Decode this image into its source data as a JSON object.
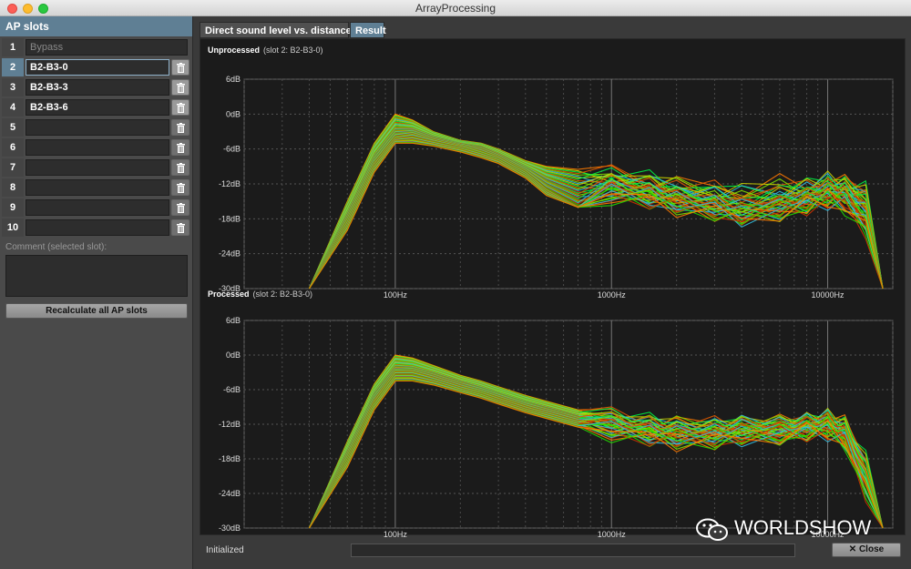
{
  "window": {
    "title": "ArrayProcessing"
  },
  "sidebar": {
    "header": "AP slots",
    "slots": [
      {
        "num": "1",
        "name": "Bypass"
      },
      {
        "num": "2",
        "name": "B2-B3-0"
      },
      {
        "num": "3",
        "name": "B2-B3-3"
      },
      {
        "num": "4",
        "name": "B2-B3-6"
      },
      {
        "num": "5",
        "name": ""
      },
      {
        "num": "6",
        "name": ""
      },
      {
        "num": "7",
        "name": ""
      },
      {
        "num": "8",
        "name": ""
      },
      {
        "num": "9",
        "name": ""
      },
      {
        "num": "10",
        "name": ""
      }
    ],
    "selected_slot": "2",
    "comment_label": "Comment (selected slot):",
    "comment_value": "",
    "recalc_label": "Recalculate all AP slots"
  },
  "tabs": [
    {
      "label": "Direct sound level vs. distance / dB",
      "active": false
    },
    {
      "label": "Result",
      "active": true
    }
  ],
  "plots": {
    "unprocessed": {
      "title": "Unprocessed",
      "subtitle": "(slot 2: B2-B3-0)"
    },
    "processed": {
      "title": "Processed",
      "subtitle": "(slot 2: B2-B3-0)"
    },
    "y_ticks": [
      "6dB",
      "0dB",
      "-6dB",
      "-12dB",
      "-18dB",
      "-24dB",
      "-30dB"
    ],
    "x_ticks": [
      "100Hz",
      "1000Hz",
      "10000Hz"
    ]
  },
  "status": {
    "label": "Initialized",
    "progress": 0
  },
  "close_label": "✕  Close",
  "watermark": "WORLDSHOW",
  "chart_data": [
    {
      "type": "line",
      "title": "Unprocessed",
      "xscale": "log",
      "xlim": [
        20,
        20000
      ],
      "ylim": [
        -30,
        6
      ],
      "x_ticks": [
        "100Hz",
        "1000Hz",
        "10000Hz"
      ],
      "y_ticks": [
        "6dB",
        "0dB",
        "-6dB",
        "-12dB",
        "-18dB",
        "-24dB",
        "-30dB"
      ],
      "grid": true,
      "series_colors": [
        "#ff7a00",
        "#e05a00",
        "#cc3300",
        "#c8d000",
        "#80e000",
        "#22dd00",
        "#00ee44",
        "#33bbdd"
      ],
      "x": [
        40,
        60,
        80,
        100,
        120,
        150,
        200,
        250,
        300,
        400,
        500,
        700,
        1000,
        1500,
        2000,
        3000,
        4000,
        6000,
        8000,
        10000,
        12000,
        15000,
        18000
      ],
      "series": [
        {
          "values": [
            -30,
            -15,
            -5,
            0,
            -1,
            -3,
            -4.5,
            -5,
            -6,
            -8,
            -9,
            -9.5,
            -10,
            -11,
            -12,
            -12.5,
            -13,
            -12,
            -12,
            -11.5,
            -12,
            -13,
            -30
          ]
        },
        {
          "values": [
            -30,
            -17,
            -7,
            -2.5,
            -2.5,
            -3.8,
            -5,
            -5.5,
            -6.8,
            -9,
            -11,
            -13,
            -12,
            -13,
            -14,
            -15,
            -16,
            -15,
            -14,
            -12.5,
            -13,
            -15,
            -30
          ]
        },
        {
          "values": [
            -30,
            -18.5,
            -8.5,
            -4,
            -3.5,
            -4.5,
            -5.5,
            -6.5,
            -7.5,
            -10,
            -13,
            -16,
            -13,
            -14,
            -15,
            -16,
            -17,
            -16,
            -15,
            -14,
            -14,
            -18,
            -30
          ]
        },
        {
          "values": [
            -30,
            -20,
            -10,
            -5,
            -5,
            -5.5,
            -6.5,
            -7.5,
            -8.5,
            -11,
            -14,
            -16,
            -14,
            -15,
            -16,
            -17,
            -18,
            -17,
            -16,
            -15,
            -16,
            -20,
            -30
          ]
        }
      ]
    },
    {
      "type": "line",
      "title": "Processed",
      "xscale": "log",
      "xlim": [
        20,
        20000
      ],
      "ylim": [
        -30,
        6
      ],
      "x_ticks": [
        "100Hz",
        "1000Hz",
        "10000Hz"
      ],
      "y_ticks": [
        "6dB",
        "0dB",
        "-6dB",
        "-12dB",
        "-18dB",
        "-24dB",
        "-30dB"
      ],
      "grid": true,
      "series_colors": [
        "#ff7a00",
        "#e05a00",
        "#cc3300",
        "#c8d000",
        "#80e000",
        "#22dd00",
        "#00ee44",
        "#33bbdd"
      ],
      "x": [
        40,
        60,
        80,
        100,
        120,
        150,
        200,
        250,
        300,
        400,
        500,
        700,
        1000,
        1500,
        2000,
        3000,
        4000,
        6000,
        8000,
        10000,
        12000,
        15000,
        18000
      ],
      "series": [
        {
          "values": [
            -30,
            -15,
            -5,
            0,
            -0.5,
            -1.8,
            -3.5,
            -4.5,
            -5.5,
            -7,
            -8,
            -9.5,
            -10.5,
            -11.5,
            -12,
            -12,
            -12,
            -12,
            -11.5,
            -11,
            -12,
            -18,
            -30
          ]
        },
        {
          "values": [
            -30,
            -16.5,
            -6.5,
            -1.8,
            -2,
            -3,
            -4.5,
            -5.5,
            -6.5,
            -8,
            -9,
            -10.5,
            -11.5,
            -12.5,
            -13,
            -13,
            -12.5,
            -12.5,
            -12,
            -11.5,
            -13,
            -20,
            -30
          ]
        },
        {
          "values": [
            -30,
            -18,
            -8,
            -3,
            -3,
            -4,
            -5.5,
            -6.5,
            -7.5,
            -9,
            -10,
            -11.5,
            -12.5,
            -13.5,
            -14,
            -14,
            -13.5,
            -13.5,
            -13,
            -12.5,
            -14,
            -22,
            -30
          ]
        },
        {
          "values": [
            -30,
            -19.5,
            -9.5,
            -4.5,
            -4.5,
            -5.2,
            -6.5,
            -7.5,
            -8.5,
            -10,
            -11,
            -12.5,
            -13.5,
            -14.5,
            -15,
            -15,
            -14.5,
            -14,
            -13.5,
            -13.5,
            -15,
            -24,
            -30
          ]
        }
      ]
    }
  ]
}
